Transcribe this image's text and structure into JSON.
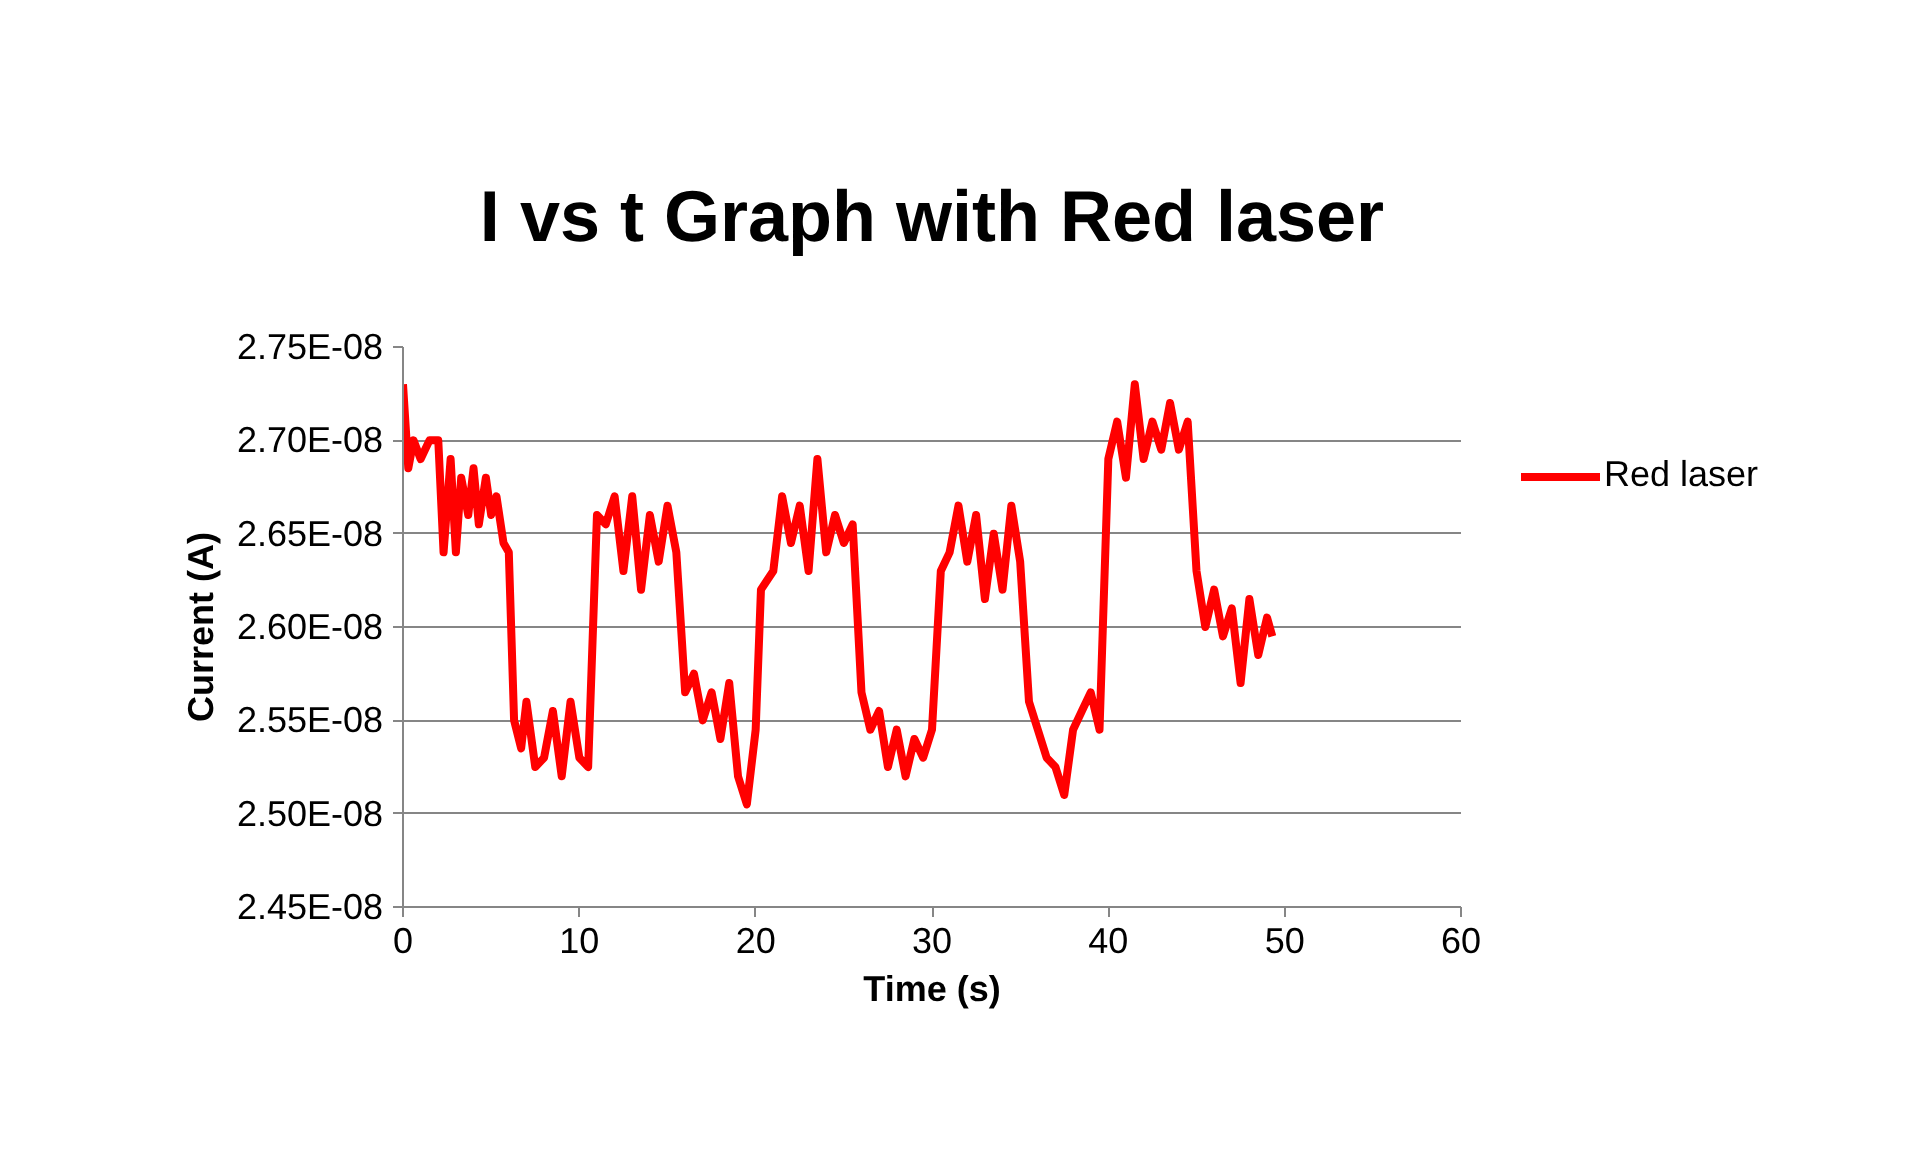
{
  "chart_data": {
    "type": "line",
    "title": "I vs t Graph with Red laser",
    "xlabel": "Time (s)",
    "ylabel": "Current (A)",
    "x": [
      0,
      0.3,
      0.6,
      1,
      1.5,
      2,
      2.3,
      2.7,
      3,
      3.3,
      3.7,
      4,
      4.3,
      4.7,
      5,
      5.3,
      5.7,
      6,
      6.3,
      6.7,
      7,
      7.5,
      8,
      8.5,
      9,
      9.5,
      10,
      10.5,
      11,
      11.5,
      12,
      12.5,
      13,
      13.5,
      14,
      14.5,
      15,
      15.5,
      16,
      16.5,
      17,
      17.5,
      18,
      18.5,
      19,
      19.5,
      20,
      20.3,
      21,
      21.5,
      22,
      22.5,
      23,
      23.5,
      24,
      24.5,
      25,
      25.5,
      26,
      26.5,
      27,
      27.5,
      28,
      28.5,
      29,
      29.5,
      30,
      30.5,
      31,
      31.5,
      32,
      32.5,
      33,
      33.5,
      34,
      34.5,
      35,
      35.5,
      36,
      36.5,
      37,
      37.5,
      38,
      38.5,
      39,
      39.5,
      40,
      40.5,
      41,
      41.5,
      42,
      42.5,
      43,
      43.5,
      44,
      44.5,
      45,
      45.5,
      46,
      46.5,
      47,
      47.5,
      48,
      48.5,
      49,
      49.3
    ],
    "series": [
      {
        "name": "Red laser",
        "color": "#ff0000",
        "values": [
          2.73e-08,
          2.685e-08,
          2.7e-08,
          2.69e-08,
          2.7e-08,
          2.7e-08,
          2.64e-08,
          2.69e-08,
          2.64e-08,
          2.68e-08,
          2.66e-08,
          2.685e-08,
          2.655e-08,
          2.68e-08,
          2.66e-08,
          2.67e-08,
          2.645e-08,
          2.64e-08,
          2.55e-08,
          2.535e-08,
          2.56e-08,
          2.525e-08,
          2.53e-08,
          2.555e-08,
          2.52e-08,
          2.56e-08,
          2.53e-08,
          2.525e-08,
          2.66e-08,
          2.655e-08,
          2.67e-08,
          2.63e-08,
          2.67e-08,
          2.62e-08,
          2.66e-08,
          2.635e-08,
          2.665e-08,
          2.64e-08,
          2.565e-08,
          2.575e-08,
          2.55e-08,
          2.565e-08,
          2.54e-08,
          2.57e-08,
          2.52e-08,
          2.505e-08,
          2.545e-08,
          2.62e-08,
          2.63e-08,
          2.67e-08,
          2.645e-08,
          2.665e-08,
          2.63e-08,
          2.69e-08,
          2.64e-08,
          2.66e-08,
          2.645e-08,
          2.655e-08,
          2.565e-08,
          2.545e-08,
          2.555e-08,
          2.525e-08,
          2.545e-08,
          2.52e-08,
          2.54e-08,
          2.53e-08,
          2.545e-08,
          2.63e-08,
          2.64e-08,
          2.665e-08,
          2.635e-08,
          2.66e-08,
          2.615e-08,
          2.65e-08,
          2.62e-08,
          2.665e-08,
          2.635e-08,
          2.56e-08,
          2.545e-08,
          2.53e-08,
          2.525e-08,
          2.51e-08,
          2.545e-08,
          2.555e-08,
          2.565e-08,
          2.545e-08,
          2.69e-08,
          2.71e-08,
          2.68e-08,
          2.73e-08,
          2.69e-08,
          2.71e-08,
          2.695e-08,
          2.72e-08,
          2.695e-08,
          2.71e-08,
          2.63e-08,
          2.6e-08,
          2.62e-08,
          2.595e-08,
          2.61e-08,
          2.57e-08,
          2.615e-08,
          2.585e-08,
          2.605e-08,
          2.595e-08
        ]
      }
    ],
    "xlim": [
      0,
      60
    ],
    "xticks": [
      0,
      10,
      20,
      30,
      40,
      50,
      60
    ],
    "ylim": [
      2.45e-08,
      2.75e-08
    ],
    "yticks": [
      {
        "value": 2.45e-08,
        "label": "2.45E-08"
      },
      {
        "value": 2.5e-08,
        "label": "2.50E-08"
      },
      {
        "value": 2.55e-08,
        "label": "2.55E-08"
      },
      {
        "value": 2.6e-08,
        "label": "2.60E-08"
      },
      {
        "value": 2.65e-08,
        "label": "2.65E-08"
      },
      {
        "value": 2.7e-08,
        "label": "2.70E-08"
      },
      {
        "value": 2.75e-08,
        "label": "2.75E-08"
      }
    ],
    "grid": "y",
    "legend": "right",
    "marker": "none",
    "line_style": "solid"
  }
}
